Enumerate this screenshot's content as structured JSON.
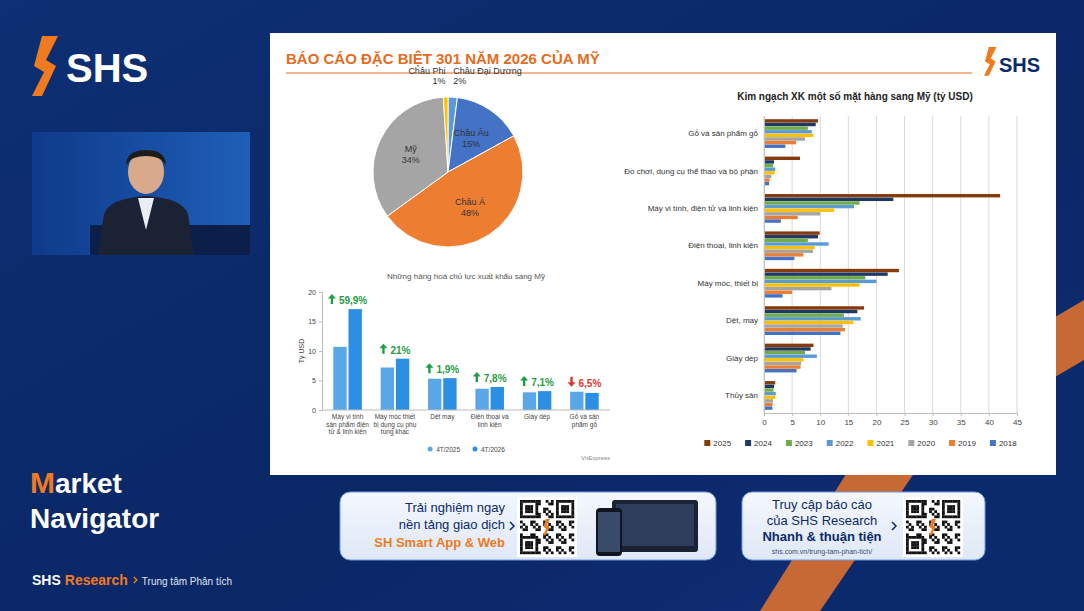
{
  "page": {
    "logo": "SHS",
    "slide_title": "BÁO CÁO ĐẶC BIỆT 301 NĂM 2026 CỦA MỸ",
    "slide_logo": "SHS",
    "show_title": [
      "M",
      "arket",
      "Navigator"
    ],
    "footer": [
      "SHS",
      "Research",
      "Trung tâm Phân tích"
    ],
    "banner_app": [
      "Trải nghiệm ngay",
      "nền tảng giao dịch",
      "SH Smart App & Web"
    ],
    "banner_report": [
      "Truy cập báo cáo",
      "của SHS Research",
      "Nhanh & thuận tiện",
      "shs.com.vn/trung-tam-phan-tich/"
    ]
  },
  "chart_data": [
    {
      "type": "pie",
      "categories": [
        "Châu Đại Dương",
        "Châu Âu",
        "Châu Á",
        "Mỹ",
        "Châu Phi"
      ],
      "values": [
        2,
        15,
        48,
        34,
        1
      ],
      "value_labels": [
        "2%",
        "15%",
        "48%",
        "34%",
        "1%"
      ],
      "colors": [
        "#5b9bd5",
        "#4472c4",
        "#ed7d31",
        "#a5a5a5",
        "#ffc000"
      ],
      "data_labels": true
    },
    {
      "type": "bar",
      "title": "Những hàng hoá chủ lực xuất khẩu sang Mỹ",
      "y_label": "Tỷ USD",
      "categories": [
        "Máy vi tính sản phẩm điện tử & linh kiện",
        "Máy móc thiết bị dụng cụ phụ tùng khác",
        "Dệt may",
        "Điện thoại và linh kiện",
        "Giày dép",
        "Gỗ và sản phẩm gỗ"
      ],
      "series": [
        {
          "name": "4T/2025",
          "color": "#5aa7e8",
          "values": [
            10.7,
            7.2,
            5.3,
            3.6,
            3.0,
            3.1
          ]
        },
        {
          "name": "4T/2026",
          "color": "#2b8fe3",
          "values": [
            17.1,
            8.7,
            5.4,
            3.9,
            3.2,
            2.9
          ]
        }
      ],
      "ylim": [
        0,
        20
      ],
      "yticks": [
        0,
        5,
        10,
        15,
        20
      ],
      "grid": false,
      "legend": "bottom",
      "annotations": [
        "59,9%",
        "21%",
        "1,9%",
        "7,8%",
        "7,1%",
        "6,5%"
      ],
      "source": "VnExpress"
    },
    {
      "type": "bar",
      "orientation": "horizontal",
      "title": "Kim ngạch XK một số mặt hàng sang Mỹ (tỷ USD)",
      "categories": [
        "Gỗ và sản phẩm gỗ",
        "Đồ chơi, dụng cụ thể thao và bộ phận",
        "Máy vi tính, điện tử và linh kiện",
        "Điện thoại, linh kiện",
        "Máy móc, thiết bị",
        "Dệt, may",
        "Giày dép",
        "Thủy sản"
      ],
      "series": [
        {
          "name": "2025",
          "color": "#843c0c",
          "values": [
            9.6,
            6.4,
            42.0,
            9.9,
            24.0,
            17.8,
            8.8,
            2.0
          ]
        },
        {
          "name": "2024",
          "color": "#203864",
          "values": [
            9.2,
            1.8,
            23.0,
            9.6,
            22.0,
            16.6,
            8.3,
            1.8
          ]
        },
        {
          "name": "2023",
          "color": "#70ad47",
          "values": [
            7.8,
            1.6,
            17.0,
            7.8,
            18.0,
            14.2,
            7.3,
            1.7
          ]
        },
        {
          "name": "2022",
          "color": "#5b9bd5",
          "values": [
            8.5,
            2.0,
            16.0,
            11.5,
            20.0,
            17.2,
            9.4,
            2.1
          ]
        },
        {
          "name": "2021",
          "color": "#ffc000",
          "values": [
            8.8,
            1.9,
            12.5,
            9.0,
            17.0,
            15.9,
            7.0,
            2.0
          ]
        },
        {
          "name": "2020",
          "color": "#a5a5a5",
          "values": [
            7.3,
            1.3,
            10.0,
            8.7,
            12.0,
            14.0,
            6.6,
            1.6
          ]
        },
        {
          "name": "2019",
          "color": "#ed7d31",
          "values": [
            5.7,
            1.0,
            6.0,
            7.0,
            5.0,
            14.4,
            6.5,
            1.5
          ]
        },
        {
          "name": "2018",
          "color": "#4472c4",
          "values": [
            3.8,
            0.9,
            3.0,
            5.4,
            3.3,
            13.6,
            5.8,
            1.5
          ]
        }
      ],
      "xlim": [
        0,
        45
      ],
      "xticks": [
        0,
        5,
        10,
        15,
        20,
        25,
        30,
        35,
        40,
        45
      ],
      "grid": true,
      "legend": "bottom"
    }
  ]
}
